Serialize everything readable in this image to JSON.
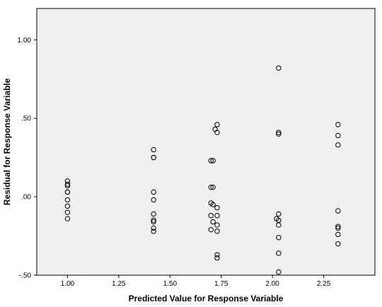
{
  "chart_data": {
    "type": "scatter",
    "title": "",
    "xlabel": "Predicted Value for Response Variable",
    "ylabel": "Residual for Response Variable",
    "xlim": [
      0.85,
      2.5
    ],
    "ylim": [
      -0.5,
      1.2
    ],
    "xticks": [
      1.0,
      1.25,
      1.5,
      1.75,
      2.0,
      2.25
    ],
    "xtick_labels": [
      "1.00",
      "1.25",
      "1.50",
      "1.75",
      "2.00",
      "2.25"
    ],
    "yticks": [
      -0.5,
      0.0,
      0.5,
      1.0
    ],
    "ytick_labels": [
      "-.50",
      ".00",
      ".50",
      "1.00"
    ],
    "grid": false,
    "colors": {
      "plot_background": "#f0f0f0",
      "marker_stroke": "#000000",
      "frame": "#000000"
    },
    "points": [
      {
        "x": 1.0,
        "y": 0.1
      },
      {
        "x": 1.0,
        "y": 0.08
      },
      {
        "x": 1.0,
        "y": 0.07
      },
      {
        "x": 1.0,
        "y": 0.03
      },
      {
        "x": 1.0,
        "y": 0.03
      },
      {
        "x": 1.0,
        "y": -0.02
      },
      {
        "x": 1.0,
        "y": -0.06
      },
      {
        "x": 1.0,
        "y": -0.1
      },
      {
        "x": 1.0,
        "y": -0.14
      },
      {
        "x": 1.42,
        "y": 0.3
      },
      {
        "x": 1.42,
        "y": 0.25
      },
      {
        "x": 1.42,
        "y": 0.25
      },
      {
        "x": 1.42,
        "y": 0.03
      },
      {
        "x": 1.42,
        "y": -0.02
      },
      {
        "x": 1.42,
        "y": -0.11
      },
      {
        "x": 1.42,
        "y": -0.15
      },
      {
        "x": 1.42,
        "y": -0.16
      },
      {
        "x": 1.42,
        "y": -0.2
      },
      {
        "x": 1.42,
        "y": -0.22
      },
      {
        "x": 1.73,
        "y": 0.46
      },
      {
        "x": 1.72,
        "y": 0.43
      },
      {
        "x": 1.73,
        "y": 0.41
      },
      {
        "x": 1.7,
        "y": 0.23
      },
      {
        "x": 1.71,
        "y": 0.23
      },
      {
        "x": 1.7,
        "y": 0.06
      },
      {
        "x": 1.71,
        "y": 0.06
      },
      {
        "x": 1.7,
        "y": -0.04
      },
      {
        "x": 1.71,
        "y": -0.05
      },
      {
        "x": 1.73,
        "y": -0.07
      },
      {
        "x": 1.7,
        "y": -0.12
      },
      {
        "x": 1.73,
        "y": -0.12
      },
      {
        "x": 1.71,
        "y": -0.16
      },
      {
        "x": 1.73,
        "y": -0.18
      },
      {
        "x": 1.7,
        "y": -0.21
      },
      {
        "x": 1.73,
        "y": -0.22
      },
      {
        "x": 1.73,
        "y": -0.37
      },
      {
        "x": 1.73,
        "y": -0.39
      },
      {
        "x": 2.03,
        "y": 0.82
      },
      {
        "x": 2.03,
        "y": 0.41
      },
      {
        "x": 2.03,
        "y": 0.4
      },
      {
        "x": 2.03,
        "y": -0.11
      },
      {
        "x": 2.02,
        "y": -0.14
      },
      {
        "x": 2.03,
        "y": -0.15
      },
      {
        "x": 2.03,
        "y": -0.18
      },
      {
        "x": 2.03,
        "y": -0.26
      },
      {
        "x": 2.03,
        "y": -0.36
      },
      {
        "x": 2.03,
        "y": -0.48
      },
      {
        "x": 2.32,
        "y": 0.46
      },
      {
        "x": 2.32,
        "y": 0.39
      },
      {
        "x": 2.32,
        "y": 0.33
      },
      {
        "x": 2.32,
        "y": -0.09
      },
      {
        "x": 2.32,
        "y": -0.19
      },
      {
        "x": 2.32,
        "y": -0.2
      },
      {
        "x": 2.32,
        "y": -0.24
      },
      {
        "x": 2.32,
        "y": -0.3
      }
    ]
  }
}
